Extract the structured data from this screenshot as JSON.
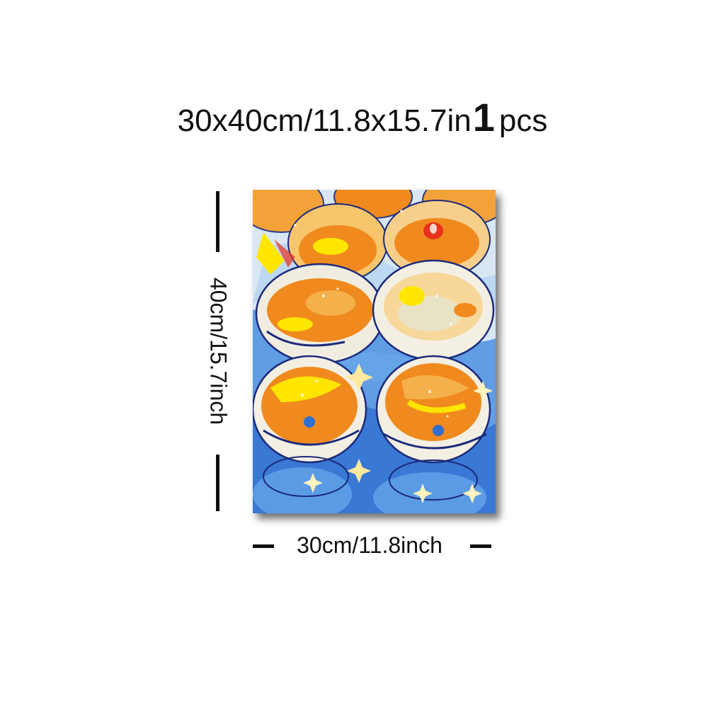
{
  "header": {
    "size_text": "30x40cm/11.8x15.7in",
    "quantity": "1",
    "quantity_unit": "pcs"
  },
  "product": {
    "artwork": "painting-of-glasses-with-orange-drinks",
    "colors": {
      "background_blue": "#4a8fe0",
      "pale_blue": "#cfe3f6",
      "orange": "#f08a1e",
      "yellow": "#ffe600",
      "red": "#e8321c",
      "navy": "#1c2a7a"
    }
  },
  "dimensions": {
    "height_label": "40cm/15.7inch",
    "width_label": "30cm/11.8inch"
  }
}
